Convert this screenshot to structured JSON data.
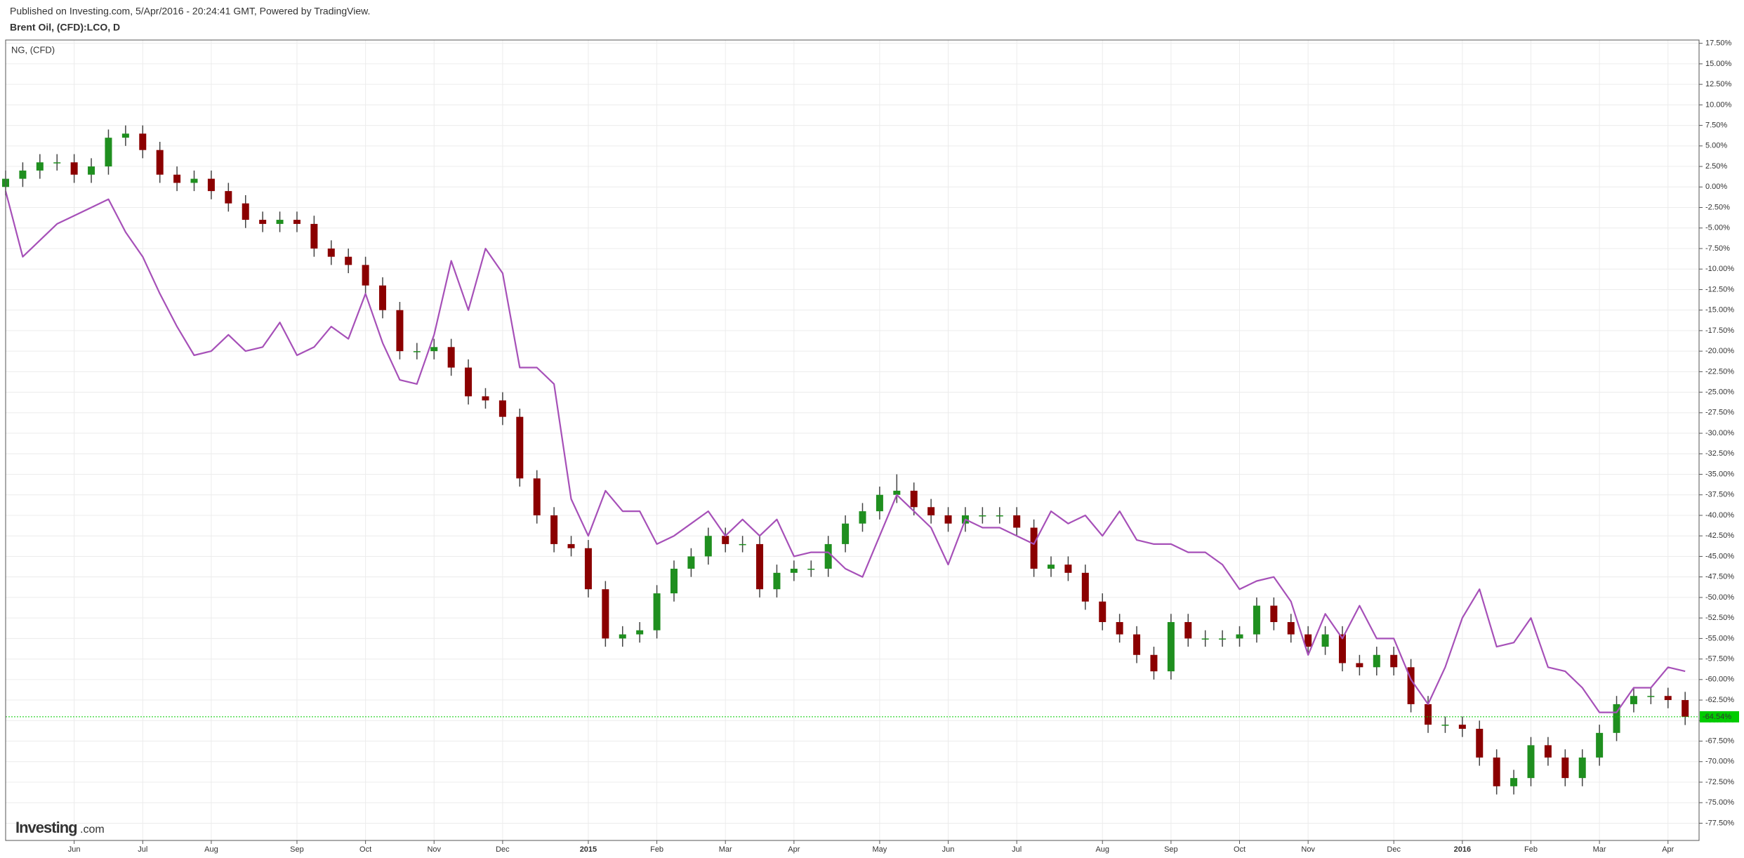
{
  "chart_data": {
    "type": "candlestick",
    "source_note": "Published on Investing.com, 5/Apr/2016 - 20:24:41 GMT, Powered by TradingView.",
    "logo": {
      "main": "Investing",
      "suffix": ".com"
    },
    "categories": [
      null,
      null,
      null,
      null,
      "Jun",
      null,
      null,
      null,
      "Jul",
      null,
      null,
      null,
      "Aug",
      null,
      null,
      null,
      null,
      "Sep",
      null,
      null,
      null,
      "Oct",
      null,
      null,
      null,
      "Nov",
      null,
      null,
      null,
      "Dec",
      null,
      null,
      null,
      null,
      "2015",
      null,
      null,
      null,
      "Feb",
      null,
      null,
      null,
      "Mar",
      null,
      null,
      null,
      "Apr",
      null,
      null,
      null,
      null,
      "May",
      null,
      null,
      null,
      "Jun",
      null,
      null,
      null,
      "Jul",
      null,
      null,
      null,
      null,
      "Aug",
      null,
      null,
      null,
      "Sep",
      null,
      null,
      null,
      "Oct",
      null,
      null,
      null,
      "Nov",
      null,
      null,
      null,
      null,
      "Dec",
      null,
      null,
      null,
      "2016",
      null,
      null,
      null,
      "Feb",
      null,
      null,
      null,
      "Mar",
      null,
      null,
      null,
      "Apr",
      null
    ],
    "series": [
      {
        "name": "Brent Oil, (CFD):LCO, D",
        "type": "candlestick",
        "up_color": "#1f8f1f",
        "down_color": "#8b0000",
        "wick_color": "#444444",
        "open": [
          0,
          1,
          2,
          3,
          3,
          1.5,
          2.5,
          6,
          6.5,
          4.5,
          1.5,
          0.5,
          1,
          -0.5,
          -2,
          -4,
          -4.5,
          -4,
          -4.5,
          -7.5,
          -8.5,
          -9.5,
          -12,
          -15,
          -20,
          -20,
          -19.5,
          -22,
          -25.5,
          -26,
          -28,
          -35.5,
          -40,
          -43.5,
          -44,
          -49,
          -55,
          -54.5,
          -54,
          -49.5,
          -46.5,
          -45,
          -42.5,
          -43.5,
          -43.5,
          -49,
          -47,
          -46.5,
          -46.5,
          -43.5,
          -41,
          -39.5,
          -37.5,
          -37,
          -39,
          -40,
          -41,
          -40,
          -40,
          -40,
          -41.5,
          -46.5,
          -46,
          -47,
          -50.5,
          -53,
          -54.5,
          -57,
          -59,
          -53,
          -55,
          -55,
          -55,
          -54.5,
          -51,
          -53,
          -54.5,
          -56,
          -54.5,
          -58,
          -58.5,
          -57,
          -58.5,
          -63,
          -65.5,
          -65.5,
          -66,
          -69.5,
          -73,
          -72,
          -68,
          -69.5,
          -72,
          -69.5,
          -66.5,
          -63,
          -62,
          -62,
          -62.5
        ],
        "high": [
          2,
          3,
          4,
          4,
          4,
          3.5,
          7,
          7.5,
          7.5,
          5.5,
          2.5,
          2,
          2,
          0.5,
          -1,
          -3,
          -3,
          -3,
          -3.5,
          -6.5,
          -7.5,
          -8.5,
          -11,
          -14,
          -19,
          -18.5,
          -18.5,
          -21,
          -24.5,
          -25,
          -27,
          -34.5,
          -39,
          -42.5,
          -43,
          -48,
          -53.5,
          -53,
          -48.5,
          -45.5,
          -44,
          -41.5,
          -41.5,
          -42.5,
          -42.5,
          -46,
          -45.5,
          -45.5,
          -42.5,
          -40,
          -38.5,
          -36.5,
          -35,
          -36,
          -38,
          -39,
          -39,
          -39,
          -39,
          -39,
          -40.5,
          -45,
          -45,
          -46,
          -49.5,
          -52,
          -53.5,
          -56,
          -52,
          -52,
          -54,
          -54,
          -53.5,
          -50,
          -50,
          -52,
          -53.5,
          -53.5,
          -53.5,
          -57,
          -56,
          -56,
          -57.5,
          -62,
          -64.5,
          -64.5,
          -65,
          -68.5,
          -71,
          -67,
          -67,
          -68.5,
          -68.5,
          -65.5,
          -62,
          -61,
          -61,
          -61,
          -61.5
        ],
        "low": [
          -1,
          0,
          1,
          2,
          0.5,
          0.5,
          1.5,
          5,
          3.5,
          0.5,
          -0.5,
          -0.5,
          -1.5,
          -3,
          -5,
          -5.5,
          -5.5,
          -5.5,
          -8.5,
          -9.5,
          -10.5,
          -13,
          -16,
          -21,
          -21,
          -21,
          -23,
          -26.5,
          -27,
          -29,
          -36.5,
          -41,
          -44.5,
          -45,
          -50,
          -56,
          -56,
          -55.5,
          -55,
          -50.5,
          -47.5,
          -46,
          -44.5,
          -44.5,
          -50,
          -50,
          -48,
          -47.5,
          -47.5,
          -44.5,
          -42,
          -40.5,
          -38.5,
          -40,
          -41,
          -42,
          -42,
          -41,
          -41,
          -42.5,
          -47.5,
          -47.5,
          -48,
          -51.5,
          -54,
          -55.5,
          -58,
          -60,
          -60,
          -56,
          -56,
          -56,
          -56,
          -55.5,
          -54,
          -55.5,
          -57,
          -57,
          -59,
          -59.5,
          -59.5,
          -59.5,
          -64,
          -66.5,
          -66.5,
          -67,
          -70.5,
          -74,
          -74,
          -73,
          -70.5,
          -73,
          -73,
          -70.5,
          -67.5,
          -64,
          -63,
          -63.5,
          -65.54
        ],
        "close": [
          1,
          2,
          3,
          3,
          1.5,
          2.5,
          6,
          6.5,
          4.5,
          1.5,
          0.5,
          1,
          -0.5,
          -2,
          -4,
          -4.5,
          -4,
          -4.5,
          -7.5,
          -8.5,
          -9.5,
          -12,
          -15,
          -20,
          -20,
          -19.5,
          -22,
          -25.5,
          -26,
          -28,
          -35.5,
          -40,
          -43.5,
          -44,
          -49,
          -55,
          -54.5,
          -54,
          -49.5,
          -46.5,
          -45,
          -42.5,
          -43.5,
          -43.5,
          -49,
          -47,
          -46.5,
          -46.5,
          -43.5,
          -41,
          -39.5,
          -37.5,
          -37,
          -39,
          -40,
          -41,
          -40,
          -40,
          -40,
          -41.5,
          -46.5,
          -46,
          -47,
          -50.5,
          -53,
          -54.5,
          -57,
          -59,
          -53,
          -55,
          -55,
          -55,
          -54.5,
          -51,
          -53,
          -54.5,
          -56,
          -54.5,
          -58,
          -58.5,
          -57,
          -58.5,
          -63,
          -65.5,
          -65.5,
          -66,
          -69.5,
          -73,
          -72,
          -68,
          -69.5,
          -72,
          -69.5,
          -66.5,
          -63,
          -62,
          -62,
          -62.5,
          -64.54
        ]
      },
      {
        "name": "NG,  (CFD)",
        "type": "line",
        "color": "#a650b8",
        "values": [
          -0.5,
          -8.5,
          -6.5,
          -4.5,
          -3.5,
          -2.5,
          -1.5,
          -5.5,
          -8.5,
          -13,
          -17,
          -20.5,
          -20,
          -18,
          -20,
          -19.5,
          -16.5,
          -20.5,
          -19.5,
          -17,
          -18.5,
          -13,
          -19,
          -23.5,
          -24,
          -18,
          -9,
          -15,
          -7.5,
          -10.5,
          -22,
          -22,
          -24,
          -38,
          -42.5,
          -37,
          -39.5,
          -39.5,
          -43.5,
          -42.5,
          -41,
          -39.5,
          -42.5,
          -40.5,
          -42.5,
          -40.5,
          -45,
          -44.5,
          -44.5,
          -46.5,
          -47.5,
          -42.5,
          -37.5,
          -39.5,
          -41.5,
          -46,
          -40.5,
          -41.5,
          -41.5,
          -42.5,
          -43.5,
          -39.5,
          -41,
          -40,
          -42.5,
          -39.5,
          -43,
          -43.5,
          -43.5,
          -44.5,
          -44.5,
          -46,
          -49,
          -48,
          -47.5,
          -50.5,
          -57,
          -52,
          -55,
          -51,
          -55,
          -55,
          -60,
          -63,
          -58.5,
          -52.5,
          -49,
          -56,
          -55.5,
          -52.5,
          -58.5,
          -59,
          -61,
          -64,
          -64,
          -61,
          -61,
          -58.5,
          -59
        ]
      }
    ],
    "last_label": "-64.54%",
    "last_color": "#00cc00",
    "ylim": [
      -79.6,
      17.9
    ],
    "yticks": [
      {
        "value": 17.5,
        "label": "17.50%"
      },
      {
        "value": 15,
        "label": "15.00%"
      },
      {
        "value": 12.5,
        "label": "12.50%"
      },
      {
        "value": 10,
        "label": "10.00%"
      },
      {
        "value": 7.5,
        "label": "7.50%"
      },
      {
        "value": 5,
        "label": "5.00%"
      },
      {
        "value": 2.5,
        "label": "2.50%"
      },
      {
        "value": 0,
        "label": "0.00%"
      },
      {
        "value": -2.5,
        "label": "-2.50%"
      },
      {
        "value": -5,
        "label": "-5.00%"
      },
      {
        "value": -7.5,
        "label": "-7.50%"
      },
      {
        "value": -10,
        "label": "-10.00%"
      },
      {
        "value": -12.5,
        "label": "-12.50%"
      },
      {
        "value": -15,
        "label": "-15.00%"
      },
      {
        "value": -17.5,
        "label": "-17.50%"
      },
      {
        "value": -20,
        "label": "-20.00%"
      },
      {
        "value": -22.5,
        "label": "-22.50%"
      },
      {
        "value": -25,
        "label": "-25.00%"
      },
      {
        "value": -27.5,
        "label": "-27.50%"
      },
      {
        "value": -30,
        "label": "-30.00%"
      },
      {
        "value": -32.5,
        "label": "-32.50%"
      },
      {
        "value": -35,
        "label": "-35.00%"
      },
      {
        "value": -37.5,
        "label": "-37.50%"
      },
      {
        "value": -40,
        "label": "-40.00%"
      },
      {
        "value": -42.5,
        "label": "-42.50%"
      },
      {
        "value": -45,
        "label": "-45.00%"
      },
      {
        "value": -47.5,
        "label": "-47.50%"
      },
      {
        "value": -50,
        "label": "-50.00%"
      },
      {
        "value": -52.5,
        "label": "-52.50%"
      },
      {
        "value": -55,
        "label": "-55.00%"
      },
      {
        "value": -57.5,
        "label": "-57.50%"
      },
      {
        "value": -60,
        "label": "-60.00%"
      },
      {
        "value": -62.5,
        "label": "-62.50%"
      },
      {
        "value": -65,
        "label": "-65.00%"
      },
      {
        "value": -67.5,
        "label": "-67.50%"
      },
      {
        "value": -70,
        "label": "-70.00%"
      },
      {
        "value": -72.5,
        "label": "-72.50%"
      },
      {
        "value": -75,
        "label": "-75.00%"
      },
      {
        "value": -77.5,
        "label": "-77.50%"
      }
    ],
    "grid": true
  }
}
